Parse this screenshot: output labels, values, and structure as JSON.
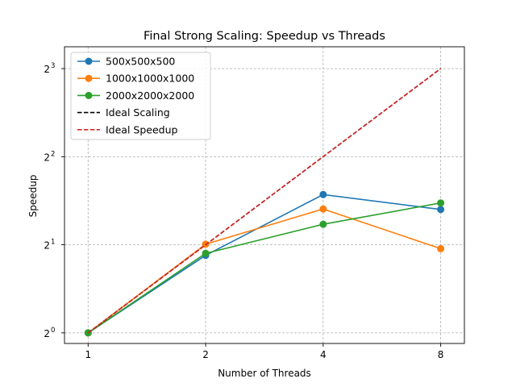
{
  "chart_data": {
    "type": "line",
    "title": "Final Strong Scaling: Speedup vs Threads",
    "xlabel": "Number of Threads",
    "ylabel": "Speedup",
    "x_scale": "log2",
    "y_scale": "log2",
    "x": [
      1,
      2,
      4,
      8
    ],
    "x_tick_labels": [
      "1",
      "2",
      "4",
      "8"
    ],
    "y_ticks": [
      1,
      2,
      4,
      8
    ],
    "y_tick_labels": [
      {
        "base": "2",
        "exp": "0"
      },
      {
        "base": "2",
        "exp": "1"
      },
      {
        "base": "2",
        "exp": "2"
      },
      {
        "base": "2",
        "exp": "3"
      }
    ],
    "xlim": [
      0.87,
      9.2
    ],
    "ylim": [
      0.92,
      9.5
    ],
    "grid": true,
    "legend_position": "top-left",
    "series": [
      {
        "name": "500x500x500",
        "values": [
          1.0,
          1.84,
          2.97,
          2.64
        ],
        "color": "#1f77b4",
        "style": "solid",
        "marker": "circle"
      },
      {
        "name": "1000x1000x1000",
        "values": [
          1.0,
          2.01,
          2.65,
          1.94
        ],
        "color": "#ff7f0e",
        "style": "solid",
        "marker": "circle"
      },
      {
        "name": "2000x2000x2000",
        "values": [
          1.0,
          1.87,
          2.35,
          2.78
        ],
        "color": "#2ca02c",
        "style": "solid",
        "marker": "circle"
      },
      {
        "name": "Ideal Scaling",
        "values": [
          1,
          2,
          4,
          8
        ],
        "color": "#000000",
        "style": "dashed",
        "marker": "none"
      },
      {
        "name": "Ideal Speedup",
        "values": [
          1,
          2,
          4,
          8
        ],
        "color": "#d62728",
        "style": "dashed",
        "marker": "none"
      }
    ]
  }
}
